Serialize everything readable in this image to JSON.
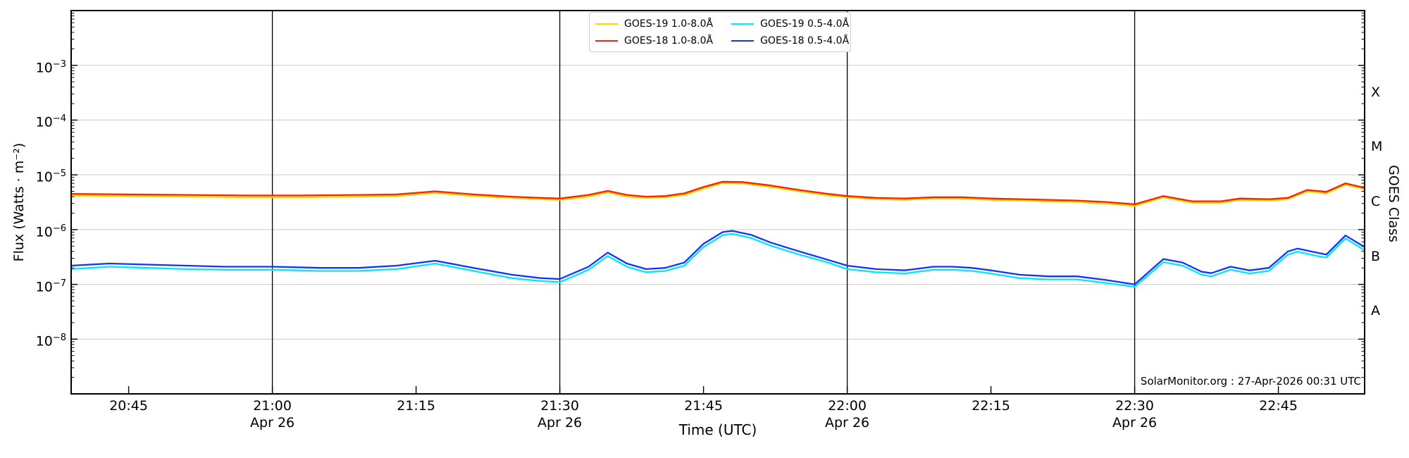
{
  "chart_data": {
    "type": "line",
    "title": "",
    "xlabel": "Time (UTC)",
    "ylabel": "Flux (Watts · m⁻²)",
    "ylabel_right": "GOES Class",
    "watermark": "SolarMonitor.org : 27-Apr-2026 00:31 UTC",
    "x_domain_minutes_after_2000utc": [
      39,
      174
    ],
    "y_domain_log10": [
      -9,
      -2
    ],
    "grid": "horizontal-decades",
    "legend_position": "top-center",
    "x_ticks": [
      {
        "minutes": 45,
        "label": "20:45",
        "date": ""
      },
      {
        "minutes": 60,
        "label": "21:00",
        "date": "Apr 26"
      },
      {
        "minutes": 75,
        "label": "21:15",
        "date": ""
      },
      {
        "minutes": 90,
        "label": "21:30",
        "date": "Apr 26"
      },
      {
        "minutes": 105,
        "label": "21:45",
        "date": ""
      },
      {
        "minutes": 120,
        "label": "22:00",
        "date": "Apr 26"
      },
      {
        "minutes": 135,
        "label": "22:15",
        "date": ""
      },
      {
        "minutes": 150,
        "label": "22:30",
        "date": "Apr 26"
      },
      {
        "minutes": 165,
        "label": "22:45",
        "date": ""
      }
    ],
    "y_tick_exponents": [
      -3,
      -4,
      -5,
      -6,
      -7,
      -8
    ],
    "event_vlines_minutes": [
      60,
      90,
      120,
      150
    ],
    "goes_class_labels": [
      {
        "label": "X",
        "log10_center": -3.5
      },
      {
        "label": "M",
        "log10_center": -4.5
      },
      {
        "label": "C",
        "log10_center": -5.5
      },
      {
        "label": "B",
        "log10_center": -6.5
      },
      {
        "label": "A",
        "log10_center": -7.5
      }
    ],
    "colors": {
      "goes19_long": "#ffd200",
      "goes18_long": "#ff2200",
      "goes19_short": "#00e6ff",
      "goes18_short": "#1133ff",
      "gridline": "#c9c9c9",
      "frame": "#000000"
    },
    "legend": [
      {
        "label": "GOES-19 1.0-8.0Å",
        "color_key": "goes19_long"
      },
      {
        "label": "GOES-18 1.0-8.0Å",
        "color_key": "goes18_long"
      },
      {
        "label": "GOES-19 0.5-4.0Å",
        "color_key": "goes19_short"
      },
      {
        "label": "GOES-18 0.5-4.0Å",
        "color_key": "goes18_short"
      }
    ],
    "series": [
      {
        "name": "GOES-19 1.0-8.0Å",
        "color_key": "goes19_long",
        "z": 1,
        "points": [
          [
            39,
            4.2e-06
          ],
          [
            45,
            4.1e-06
          ],
          [
            51,
            4e-06
          ],
          [
            57,
            3.9e-06
          ],
          [
            63,
            3.9e-06
          ],
          [
            69,
            4e-06
          ],
          [
            73,
            4.1e-06
          ],
          [
            77,
            4.7e-06
          ],
          [
            81,
            4.1e-06
          ],
          [
            85,
            3.8e-06
          ],
          [
            88,
            3.6e-06
          ],
          [
            90,
            3.5e-06
          ],
          [
            93,
            4e-06
          ],
          [
            95,
            4.8e-06
          ],
          [
            97,
            4e-06
          ],
          [
            99,
            3.8e-06
          ],
          [
            101,
            3.9e-06
          ],
          [
            103,
            4.3e-06
          ],
          [
            105,
            5.6e-06
          ],
          [
            107,
            7.1e-06
          ],
          [
            109,
            7e-06
          ],
          [
            112,
            6e-06
          ],
          [
            115,
            5e-06
          ],
          [
            118,
            4.2e-06
          ],
          [
            120,
            3.9e-06
          ],
          [
            123,
            3.6e-06
          ],
          [
            126,
            3.5e-06
          ],
          [
            129,
            3.7e-06
          ],
          [
            132,
            3.7e-06
          ],
          [
            135,
            3.5e-06
          ],
          [
            138,
            3.4e-06
          ],
          [
            141,
            3.3e-06
          ],
          [
            144,
            3.2e-06
          ],
          [
            147,
            3e-06
          ],
          [
            149,
            2.8e-06
          ],
          [
            150,
            2.7e-06
          ],
          [
            153,
            3.9e-06
          ],
          [
            156,
            3.1e-06
          ],
          [
            159,
            3.1e-06
          ],
          [
            161,
            3.5e-06
          ],
          [
            164,
            3.4e-06
          ],
          [
            166,
            3.6e-06
          ],
          [
            168,
            5e-06
          ],
          [
            170,
            4.6e-06
          ],
          [
            172,
            6.6e-06
          ],
          [
            174,
            5.5e-06
          ]
        ]
      },
      {
        "name": "GOES-19 0.5-4.0Å",
        "color_key": "goes19_short",
        "z": 2,
        "points": [
          [
            39,
            1.9e-07
          ],
          [
            43,
            2.1e-07
          ],
          [
            47,
            2e-07
          ],
          [
            51,
            1.9e-07
          ],
          [
            55,
            1.85e-07
          ],
          [
            60,
            1.85e-07
          ],
          [
            65,
            1.76e-07
          ],
          [
            69,
            1.76e-07
          ],
          [
            73,
            1.9e-07
          ],
          [
            77,
            2.4e-07
          ],
          [
            81,
            1.76e-07
          ],
          [
            85,
            1.3e-07
          ],
          [
            88,
            1.15e-07
          ],
          [
            90,
            1.1e-07
          ],
          [
            93,
            1.85e-07
          ],
          [
            95,
            3.3e-07
          ],
          [
            97,
            2.1e-07
          ],
          [
            99,
            1.67e-07
          ],
          [
            101,
            1.76e-07
          ],
          [
            103,
            2.2e-07
          ],
          [
            105,
            4.8e-07
          ],
          [
            107,
            7.9e-07
          ],
          [
            108,
            8.4e-07
          ],
          [
            110,
            7e-07
          ],
          [
            112,
            5.1e-07
          ],
          [
            115,
            3.5e-07
          ],
          [
            118,
            2.5e-07
          ],
          [
            120,
            1.9e-07
          ],
          [
            123,
            1.67e-07
          ],
          [
            126,
            1.58e-07
          ],
          [
            129,
            1.85e-07
          ],
          [
            131,
            1.85e-07
          ],
          [
            133,
            1.76e-07
          ],
          [
            135,
            1.58e-07
          ],
          [
            138,
            1.3e-07
          ],
          [
            141,
            1.23e-07
          ],
          [
            144,
            1.23e-07
          ],
          [
            147,
            1.06e-07
          ],
          [
            150,
            9e-08
          ],
          [
            153,
            2.55e-07
          ],
          [
            155,
            2.2e-07
          ],
          [
            157,
            1.5e-07
          ],
          [
            158,
            1.4e-07
          ],
          [
            160,
            1.85e-07
          ],
          [
            162,
            1.58e-07
          ],
          [
            164,
            1.76e-07
          ],
          [
            166,
            3.5e-07
          ],
          [
            167,
            3.96e-07
          ],
          [
            169,
            3.3e-07
          ],
          [
            170,
            3.1e-07
          ],
          [
            172,
            6.9e-07
          ],
          [
            174,
            4.2e-07
          ]
        ]
      },
      {
        "name": "GOES-18 1.0-8.0Å",
        "color_key": "goes18_long",
        "z": 3,
        "points": [
          [
            39,
            4.5e-06
          ],
          [
            45,
            4.4e-06
          ],
          [
            51,
            4.3e-06
          ],
          [
            57,
            4.2e-06
          ],
          [
            63,
            4.2e-06
          ],
          [
            69,
            4.3e-06
          ],
          [
            73,
            4.4e-06
          ],
          [
            77,
            5e-06
          ],
          [
            81,
            4.4e-06
          ],
          [
            85,
            4e-06
          ],
          [
            88,
            3.8e-06
          ],
          [
            90,
            3.7e-06
          ],
          [
            93,
            4.3e-06
          ],
          [
            95,
            5.1e-06
          ],
          [
            97,
            4.3e-06
          ],
          [
            99,
            4e-06
          ],
          [
            101,
            4.1e-06
          ],
          [
            103,
            4.6e-06
          ],
          [
            105,
            6e-06
          ],
          [
            107,
            7.5e-06
          ],
          [
            109,
            7.4e-06
          ],
          [
            112,
            6.4e-06
          ],
          [
            115,
            5.3e-06
          ],
          [
            118,
            4.5e-06
          ],
          [
            120,
            4.1e-06
          ],
          [
            123,
            3.8e-06
          ],
          [
            126,
            3.7e-06
          ],
          [
            129,
            3.9e-06
          ],
          [
            132,
            3.9e-06
          ],
          [
            135,
            3.7e-06
          ],
          [
            138,
            3.6e-06
          ],
          [
            141,
            3.5e-06
          ],
          [
            144,
            3.4e-06
          ],
          [
            147,
            3.2e-06
          ],
          [
            149,
            3e-06
          ],
          [
            150,
            2.9e-06
          ],
          [
            153,
            4.1e-06
          ],
          [
            156,
            3.3e-06
          ],
          [
            159,
            3.3e-06
          ],
          [
            161,
            3.7e-06
          ],
          [
            164,
            3.6e-06
          ],
          [
            166,
            3.8e-06
          ],
          [
            168,
            5.3e-06
          ],
          [
            170,
            4.9e-06
          ],
          [
            172,
            7e-06
          ],
          [
            174,
            5.8e-06
          ]
        ]
      },
      {
        "name": "GOES-18 0.5-4.0Å",
        "color_key": "goes18_short",
        "z": 4,
        "points": [
          [
            39,
            2.2e-07
          ],
          [
            43,
            2.4e-07
          ],
          [
            47,
            2.3e-07
          ],
          [
            51,
            2.2e-07
          ],
          [
            55,
            2.1e-07
          ],
          [
            60,
            2.1e-07
          ],
          [
            65,
            2e-07
          ],
          [
            69,
            2e-07
          ],
          [
            73,
            2.2e-07
          ],
          [
            77,
            2.7e-07
          ],
          [
            81,
            2e-07
          ],
          [
            85,
            1.5e-07
          ],
          [
            88,
            1.3e-07
          ],
          [
            90,
            1.25e-07
          ],
          [
            93,
            2.1e-07
          ],
          [
            95,
            3.8e-07
          ],
          [
            97,
            2.4e-07
          ],
          [
            99,
            1.9e-07
          ],
          [
            101,
            2e-07
          ],
          [
            103,
            2.5e-07
          ],
          [
            105,
            5.5e-07
          ],
          [
            107,
            9e-07
          ],
          [
            108,
            9.5e-07
          ],
          [
            110,
            8e-07
          ],
          [
            112,
            5.8e-07
          ],
          [
            115,
            4e-07
          ],
          [
            118,
            2.8e-07
          ],
          [
            120,
            2.2e-07
          ],
          [
            123,
            1.9e-07
          ],
          [
            126,
            1.8e-07
          ],
          [
            129,
            2.1e-07
          ],
          [
            131,
            2.1e-07
          ],
          [
            133,
            2e-07
          ],
          [
            135,
            1.8e-07
          ],
          [
            138,
            1.5e-07
          ],
          [
            141,
            1.4e-07
          ],
          [
            144,
            1.4e-07
          ],
          [
            147,
            1.2e-07
          ],
          [
            150,
            1e-07
          ],
          [
            153,
            2.9e-07
          ],
          [
            155,
            2.5e-07
          ],
          [
            157,
            1.7e-07
          ],
          [
            158,
            1.6e-07
          ],
          [
            160,
            2.1e-07
          ],
          [
            162,
            1.8e-07
          ],
          [
            164,
            2e-07
          ],
          [
            166,
            4e-07
          ],
          [
            167,
            4.5e-07
          ],
          [
            169,
            3.8e-07
          ],
          [
            170,
            3.5e-07
          ],
          [
            172,
            7.8e-07
          ],
          [
            174,
            4.8e-07
          ]
        ]
      }
    ]
  }
}
